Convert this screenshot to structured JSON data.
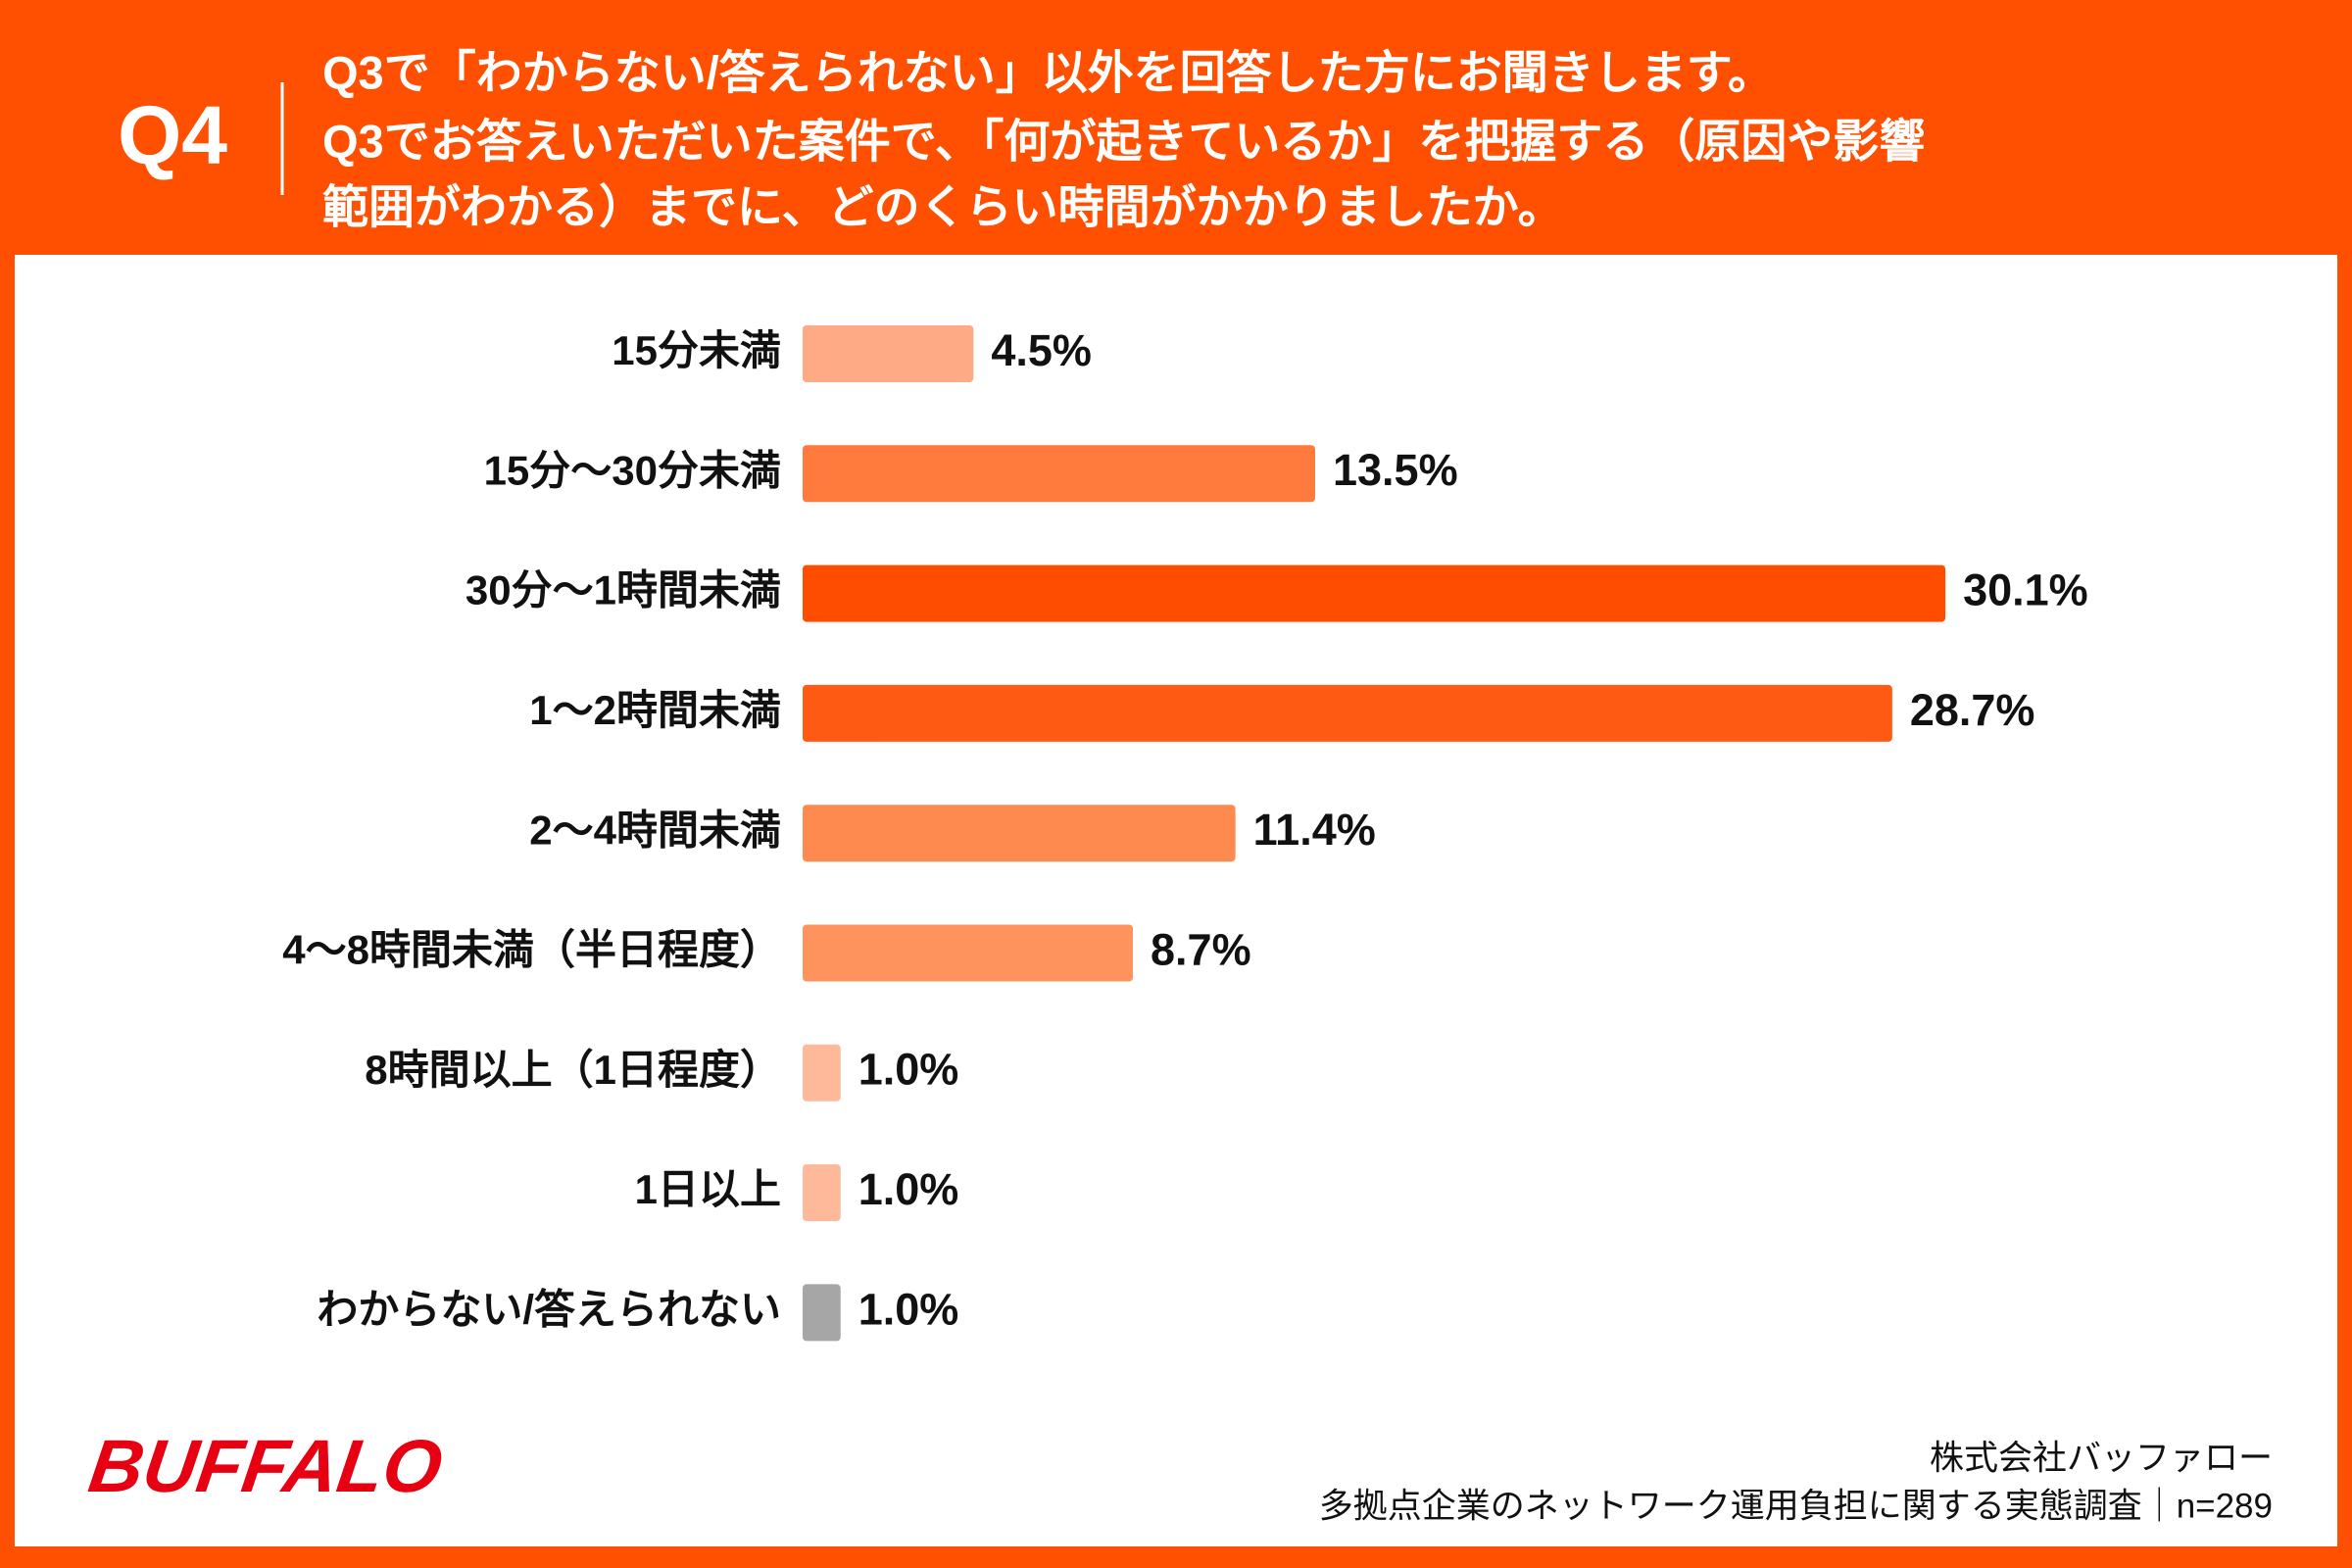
{
  "question_number": "Q4",
  "footer": {
    "company": "株式会社バッファロー",
    "survey": "多拠点企業のネットワーク運用負担に関する実態調査｜n=289"
  },
  "logo": "BUFFALO",
  "chart_data": {
    "type": "bar",
    "orientation": "horizontal",
    "title": [
      "Q3で「わからない/答えられない」以外を回答した方にお聞きします。",
      "Q3でお答えいただいた案件で、「何が起きているか」を把握する（原因や影響",
      "範囲がわかる）までに、どのくらい時間がかかりましたか。"
    ],
    "categories": [
      "15分未満",
      "15分〜30分未満",
      "30分〜1時間未満",
      "1〜2時間未満",
      "2〜4時間未満",
      "4〜8時間未満（半日程度）",
      "8時間以上（1日程度）",
      "1日以上",
      "わからない/答えられない"
    ],
    "values": [
      4.5,
      13.5,
      30.1,
      28.7,
      11.4,
      8.7,
      1.0,
      1.0,
      1.0
    ],
    "value_labels": [
      "4.5%",
      "13.5%",
      "30.1%",
      "28.7%",
      "11.4%",
      "8.7%",
      "1.0%",
      "1.0%",
      "1.0%"
    ],
    "colors": [
      "#fdaa85",
      "#ff7a3d",
      "#ff4d00",
      "#ff5a14",
      "#ff8a50",
      "#ff935e",
      "#fdb99a",
      "#fdb99a",
      "#a6a6a6"
    ]
  }
}
